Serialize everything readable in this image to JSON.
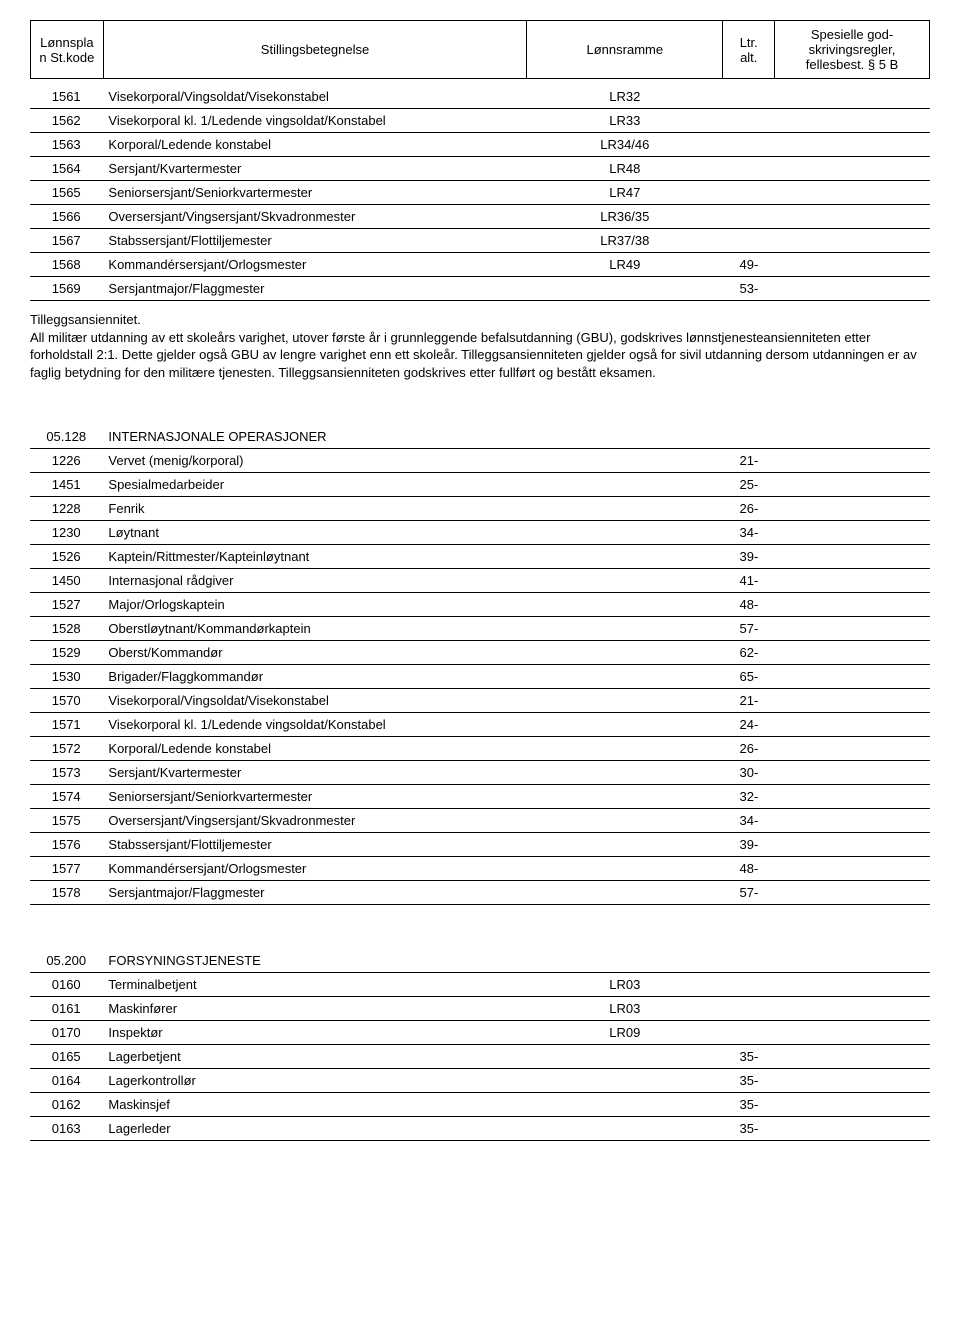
{
  "header": {
    "kode": "Lønnspla n St.kode",
    "stilling": "Stillingsbetegnelse",
    "ramme": "Lønnsramme",
    "ltr": "Ltr. alt.",
    "spes": "Spesielle god- skrivingsregler, fellesbest. § 5 B"
  },
  "table1": {
    "rows": [
      {
        "kode": "1561",
        "still": "Visekorporal/Vingsoldat/Visekonstabel",
        "ramme": "LR32",
        "ltr": "",
        "spes": ""
      },
      {
        "kode": "1562",
        "still": "Visekorporal kl. 1/Ledende vingsoldat/Konstabel",
        "ramme": "LR33",
        "ltr": "",
        "spes": ""
      },
      {
        "kode": "1563",
        "still": "Korporal/Ledende konstabel",
        "ramme": "LR34/46",
        "ltr": "",
        "spes": ""
      },
      {
        "kode": "1564",
        "still": "Sersjant/Kvartermester",
        "ramme": "LR48",
        "ltr": "",
        "spes": ""
      },
      {
        "kode": "1565",
        "still": "Seniorsersjant/Seniorkvartermester",
        "ramme": "LR47",
        "ltr": "",
        "spes": ""
      },
      {
        "kode": "1566",
        "still": "Oversersjant/Vingsersjant/Skvadronmester",
        "ramme": "LR36/35",
        "ltr": "",
        "spes": ""
      },
      {
        "kode": "1567",
        "still": "Stabssersjant/Flottiljemester",
        "ramme": "LR37/38",
        "ltr": "",
        "spes": ""
      },
      {
        "kode": "1568",
        "still": "Kommandérsersjant/Orlogsmester",
        "ramme": "LR49",
        "ltr": "49-",
        "spes": ""
      },
      {
        "kode": "1569",
        "still": "Sersjantmajor/Flaggmester",
        "ramme": "",
        "ltr": "53-",
        "spes": ""
      }
    ]
  },
  "paragraph": {
    "title": "Tilleggsansiennitet.",
    "body": "All militær utdanning av ett skoleårs varighet, utover første år i grunnleggende befalsutdanning (GBU), godskrives lønnstjenesteansienniteten etter forholdstall 2:1. Dette gjelder også GBU av lengre varighet enn ett skoleår. Tilleggsansienniteten gjelder også for sivil utdanning dersom utdanningen er av faglig betydning for den militære tjenesten. Tilleggsansienniteten godskrives etter fullført og bestått eksamen."
  },
  "table2": {
    "section_kode": "05.128",
    "section_title": "INTERNASJONALE OPERASJONER",
    "rows": [
      {
        "kode": "1226",
        "still": "Vervet (menig/korporal)",
        "ramme": "",
        "ltr": "21-",
        "spes": ""
      },
      {
        "kode": "1451",
        "still": "Spesialmedarbeider",
        "ramme": "",
        "ltr": "25-",
        "spes": ""
      },
      {
        "kode": "1228",
        "still": "Fenrik",
        "ramme": "",
        "ltr": "26-",
        "spes": ""
      },
      {
        "kode": "1230",
        "still": "Løytnant",
        "ramme": "",
        "ltr": "34-",
        "spes": ""
      },
      {
        "kode": "1526",
        "still": "Kaptein/Rittmester/Kapteinløytnant",
        "ramme": "",
        "ltr": "39-",
        "spes": ""
      },
      {
        "kode": "1450",
        "still": "Internasjonal rådgiver",
        "ramme": "",
        "ltr": "41-",
        "spes": ""
      },
      {
        "kode": "1527",
        "still": "Major/Orlogskaptein",
        "ramme": "",
        "ltr": "48-",
        "spes": ""
      },
      {
        "kode": "1528",
        "still": "Oberstløytnant/Kommandørkaptein",
        "ramme": "",
        "ltr": "57-",
        "spes": ""
      },
      {
        "kode": "1529",
        "still": "Oberst/Kommandør",
        "ramme": "",
        "ltr": "62-",
        "spes": ""
      },
      {
        "kode": "1530",
        "still": "Brigader/Flaggkommandør",
        "ramme": "",
        "ltr": "65-",
        "spes": ""
      },
      {
        "kode": "1570",
        "still": "Visekorporal/Vingsoldat/Visekonstabel",
        "ramme": "",
        "ltr": "21-",
        "spes": ""
      },
      {
        "kode": "1571",
        "still": "Visekorporal kl. 1/Ledende vingsoldat/Konstabel",
        "ramme": "",
        "ltr": "24-",
        "spes": ""
      },
      {
        "kode": "1572",
        "still": "Korporal/Ledende konstabel",
        "ramme": "",
        "ltr": "26-",
        "spes": ""
      },
      {
        "kode": "1573",
        "still": "Sersjant/Kvartermester",
        "ramme": "",
        "ltr": "30-",
        "spes": ""
      },
      {
        "kode": "1574",
        "still": "Seniorsersjant/Seniorkvartermester",
        "ramme": "",
        "ltr": "32-",
        "spes": ""
      },
      {
        "kode": "1575",
        "still": "Oversersjant/Vingsersjant/Skvadronmester",
        "ramme": "",
        "ltr": "34-",
        "spes": ""
      },
      {
        "kode": "1576",
        "still": "Stabssersjant/Flottiljemester",
        "ramme": "",
        "ltr": "39-",
        "spes": ""
      },
      {
        "kode": "1577",
        "still": "Kommandérsersjant/Orlogsmester",
        "ramme": "",
        "ltr": "48-",
        "spes": ""
      },
      {
        "kode": "1578",
        "still": "Sersjantmajor/Flaggmester",
        "ramme": "",
        "ltr": "57-",
        "spes": ""
      }
    ]
  },
  "table3": {
    "section_kode": "05.200",
    "section_title": "FORSYNINGSTJENESTE",
    "rows": [
      {
        "kode": "0160",
        "still": "Terminalbetjent",
        "ramme": "LR03",
        "ltr": "",
        "spes": ""
      },
      {
        "kode": "0161",
        "still": "Maskinfører",
        "ramme": "LR03",
        "ltr": "",
        "spes": ""
      },
      {
        "kode": "0170",
        "still": "Inspektør",
        "ramme": "LR09",
        "ltr": "",
        "spes": ""
      },
      {
        "kode": "0165",
        "still": "Lagerbetjent",
        "ramme": "",
        "ltr": "35-",
        "spes": ""
      },
      {
        "kode": "0164",
        "still": "Lagerkontrollør",
        "ramme": "",
        "ltr": "35-",
        "spes": ""
      },
      {
        "kode": "0162",
        "still": "Maskinsjef",
        "ramme": "",
        "ltr": "35-",
        "spes": ""
      },
      {
        "kode": "0163",
        "still": "Lagerleder",
        "ramme": "",
        "ltr": "35-",
        "spes": ""
      }
    ]
  }
}
